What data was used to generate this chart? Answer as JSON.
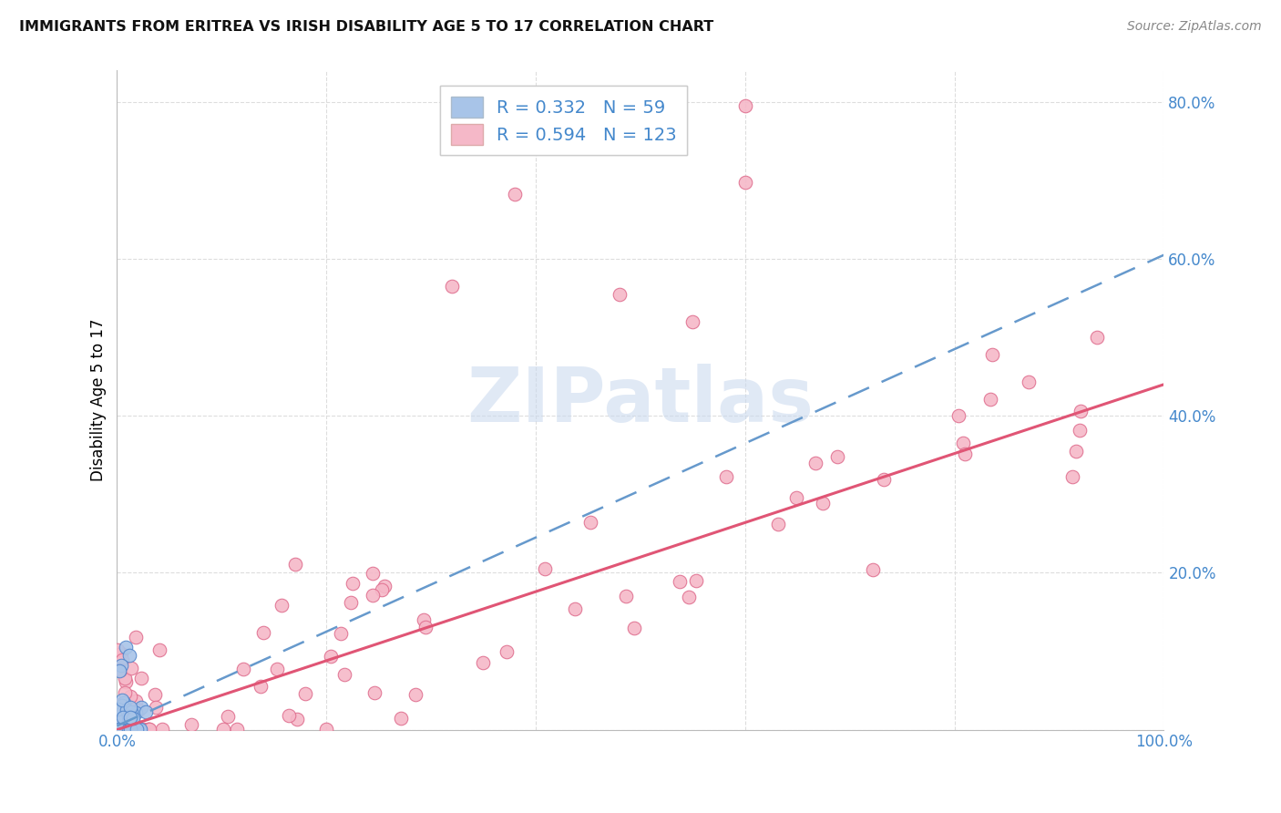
{
  "title": "IMMIGRANTS FROM ERITREA VS IRISH DISABILITY AGE 5 TO 17 CORRELATION CHART",
  "source": "Source: ZipAtlas.com",
  "ylabel": "Disability Age 5 to 17",
  "xlim": [
    0.0,
    1.0
  ],
  "ylim": [
    0.0,
    0.84
  ],
  "xtick_positions": [
    0.0,
    0.2,
    0.4,
    0.6,
    0.8,
    1.0
  ],
  "xticklabels": [
    "0.0%",
    "",
    "",
    "",
    "",
    "100.0%"
  ],
  "ytick_positions": [
    0.0,
    0.2,
    0.4,
    0.6,
    0.8
  ],
  "yticklabels": [
    "",
    "20.0%",
    "40.0%",
    "60.0%",
    "80.0%"
  ],
  "legend_R_eritrea": "0.332",
  "legend_N_eritrea": "59",
  "legend_R_irish": "0.594",
  "legend_N_irish": "123",
  "eritrea_color": "#a8c4e8",
  "eritrea_edge": "#5588cc",
  "irish_color": "#f5b8c8",
  "irish_edge": "#e07090",
  "trendline_eritrea_color": "#6699cc",
  "trendline_irish_color": "#e05575",
  "watermark": "ZIPatlas",
  "background_color": "#ffffff",
  "grid_color": "#dddddd",
  "tick_color": "#4488cc",
  "title_fontsize": 11.5,
  "axis_fontsize": 12,
  "legend_fontsize": 14,
  "trendline_eritrea_slope": 0.6,
  "trendline_eritrea_intercept": 0.005,
  "trendline_irish_slope": 0.44,
  "trendline_irish_intercept": 0.0
}
